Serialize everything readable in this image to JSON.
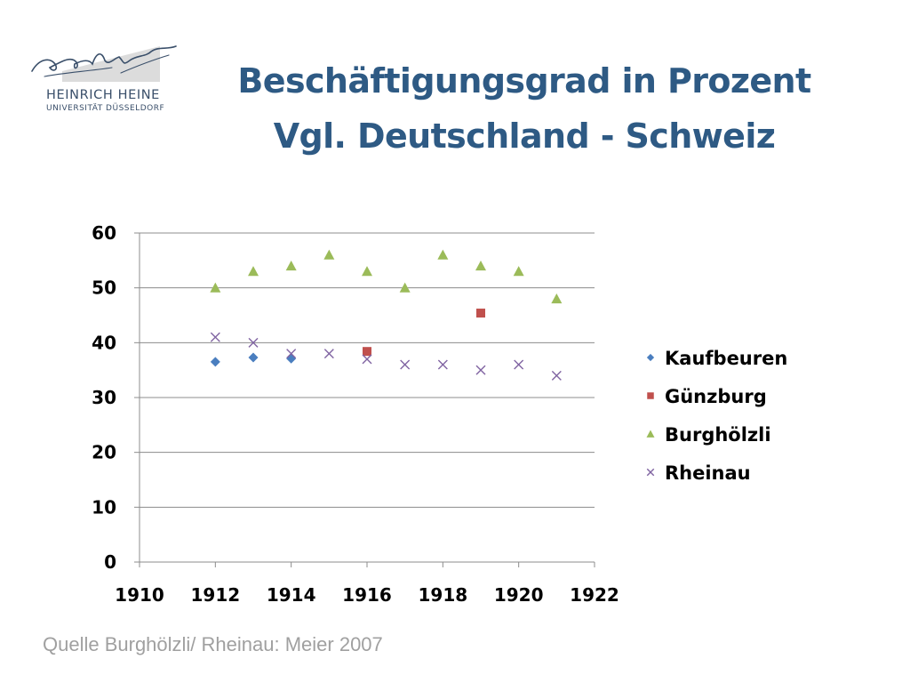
{
  "slide": {
    "title_line1": "Beschäftigungsgrad in Prozent",
    "title_line2": "Vgl. Deutschland - Schweiz",
    "source": "Quelle Burghölzli/ Rheinau: Meier 2007"
  },
  "logo": {
    "name": "HEINRICH HEINE",
    "subtitle": "UNIVERSITÄT DÜSSELDORF",
    "color": "#3a4f6a"
  },
  "chart_data": {
    "type": "scatter",
    "xlim": [
      1910,
      1922
    ],
    "ylim": [
      0,
      60
    ],
    "xticks": [
      1910,
      1912,
      1914,
      1916,
      1918,
      1920,
      1922
    ],
    "yticks": [
      0,
      10,
      20,
      30,
      40,
      50,
      60
    ],
    "grid": "horizontal",
    "legend_position": "right",
    "series": [
      {
        "name": "Kaufbeuren",
        "marker": "diamond",
        "color": "#4a7ebf",
        "points": [
          [
            1912,
            36.5
          ],
          [
            1913,
            37.3
          ],
          [
            1914,
            37.1
          ]
        ]
      },
      {
        "name": "Günzburg",
        "marker": "square",
        "color": "#c0504d",
        "points": [
          [
            1916,
            38.4
          ],
          [
            1919,
            45.4
          ]
        ]
      },
      {
        "name": "Burghölzli",
        "marker": "triangle",
        "color": "#9bbb59",
        "points": [
          [
            1912,
            50
          ],
          [
            1913,
            53
          ],
          [
            1914,
            54
          ],
          [
            1915,
            56
          ],
          [
            1916,
            53
          ],
          [
            1917,
            50
          ],
          [
            1918,
            56
          ],
          [
            1919,
            54
          ],
          [
            1920,
            53
          ],
          [
            1921,
            48
          ]
        ]
      },
      {
        "name": "Rheinau",
        "marker": "x",
        "color": "#8064a2",
        "points": [
          [
            1912,
            41
          ],
          [
            1913,
            40
          ],
          [
            1914,
            38
          ],
          [
            1915,
            38
          ],
          [
            1916,
            37
          ],
          [
            1917,
            36
          ],
          [
            1918,
            36
          ],
          [
            1919,
            35
          ],
          [
            1920,
            36
          ],
          [
            1921,
            34
          ]
        ]
      }
    ]
  }
}
